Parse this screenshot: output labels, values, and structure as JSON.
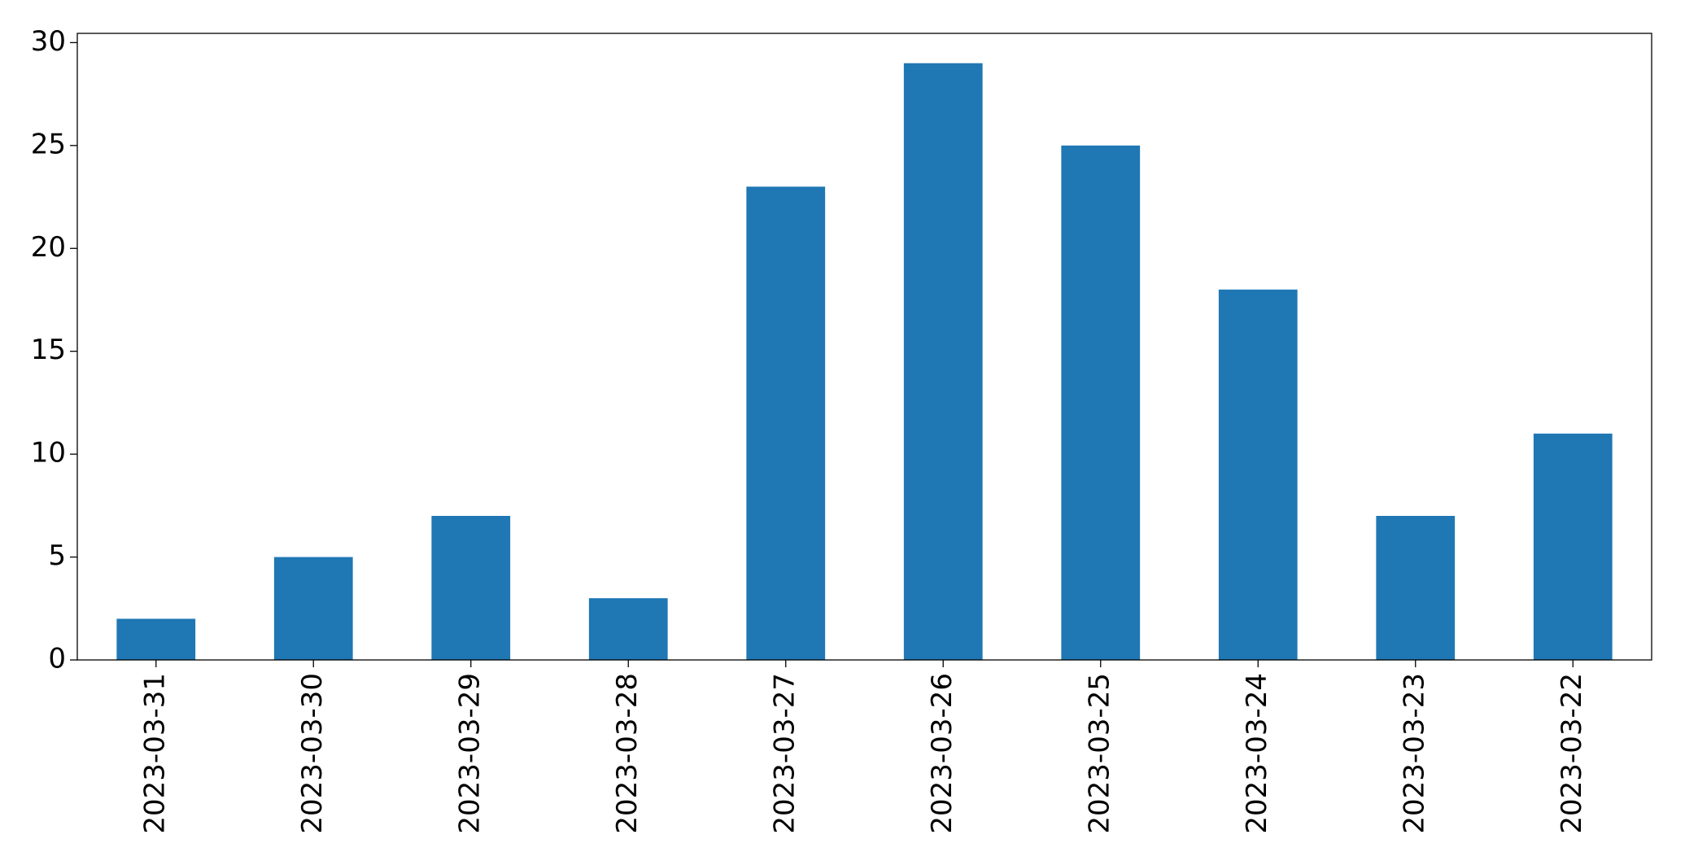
{
  "chart_data": {
    "type": "bar",
    "categories": [
      "2023-03-31",
      "2023-03-30",
      "2023-03-29",
      "2023-03-28",
      "2023-03-27",
      "2023-03-26",
      "2023-03-25",
      "2023-03-24",
      "2023-03-23",
      "2023-03-22"
    ],
    "values": [
      2,
      5,
      7,
      3,
      23,
      29,
      25,
      18,
      7,
      11
    ],
    "color": "#1f77b4",
    "ylim": [
      0,
      30.45
    ],
    "yticks": [
      0,
      5,
      10,
      15,
      20,
      25,
      30
    ],
    "grid": false
  }
}
